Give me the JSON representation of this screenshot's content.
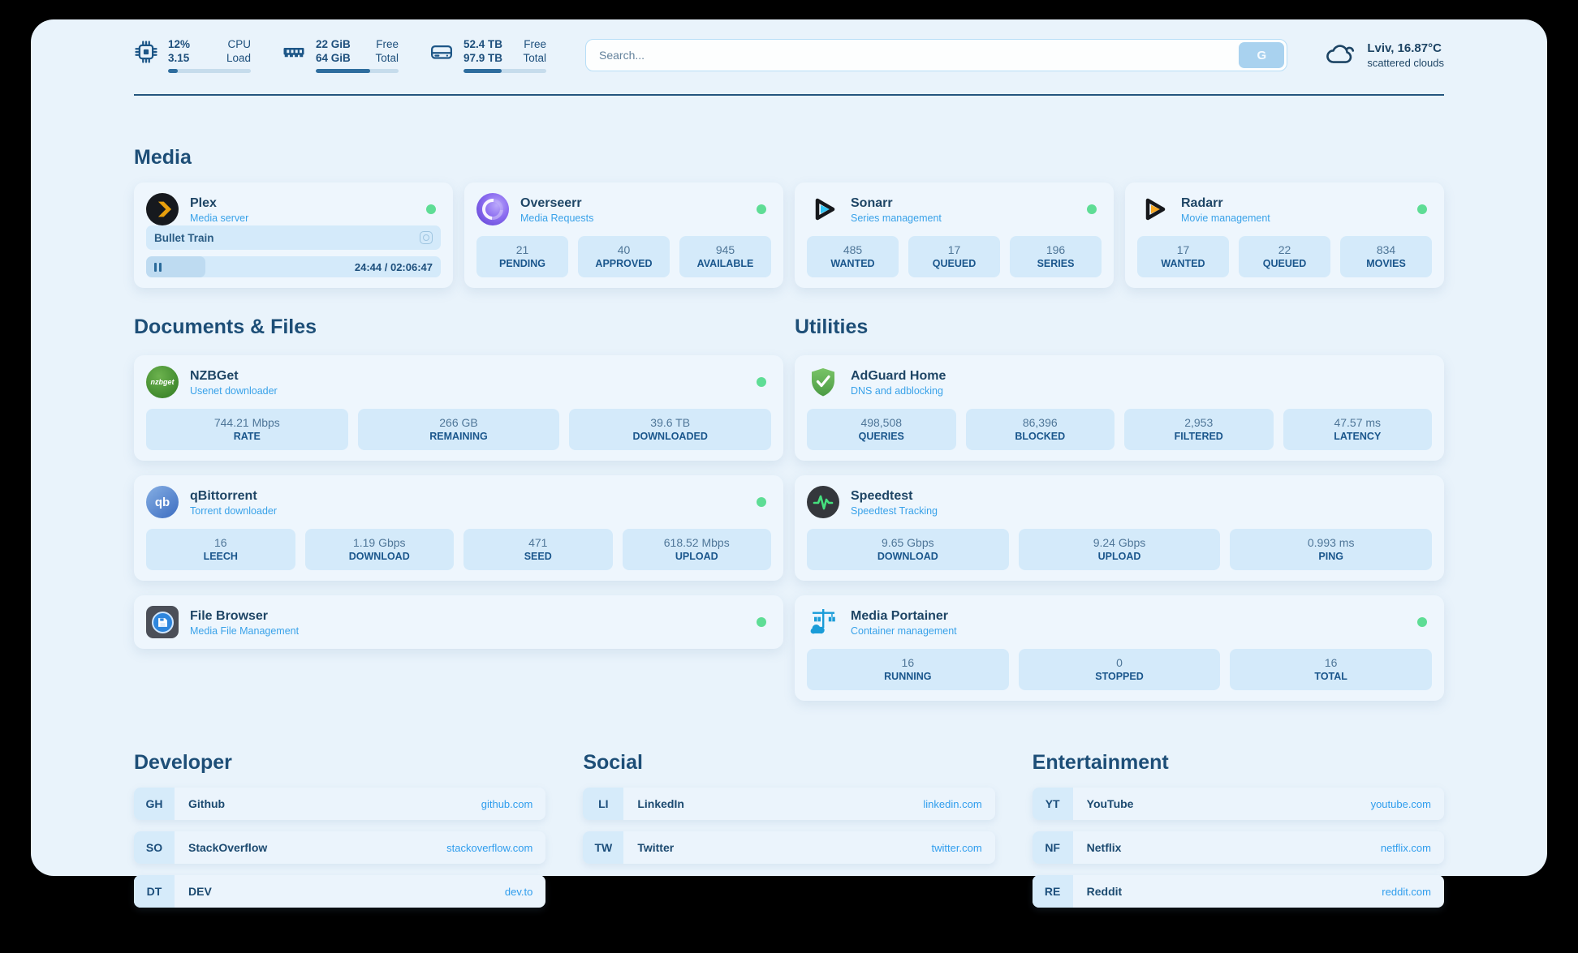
{
  "topbar": {
    "stats": [
      {
        "icon": "cpu-icon",
        "value_top": "12%",
        "value_bottom": "3.15",
        "label_top": "CPU",
        "label_bottom": "Load",
        "progress_pct": 12
      },
      {
        "icon": "ram-icon",
        "value_top": "22 GiB",
        "value_bottom": "64 GiB",
        "label_top": "Free",
        "label_bottom": "Total",
        "progress_pct": 66
      },
      {
        "icon": "disk-icon",
        "value_top": "52.4 TB",
        "value_bottom": "97.9 TB",
        "label_top": "Free",
        "label_bottom": "Total",
        "progress_pct": 46
      }
    ],
    "search": {
      "placeholder": "Search...",
      "button_label": "G"
    },
    "weather": {
      "icon": "cloud-icon",
      "location": "Lviv, 16.87°C",
      "condition": "scattered clouds"
    }
  },
  "sections": {
    "media": {
      "title": "Media",
      "plex": {
        "name": "Plex",
        "desc": "Media server",
        "status": "online",
        "now_playing": "Bullet Train",
        "time_display": "24:44 / 02:06:47",
        "progress_pct": 20
      },
      "overseerr": {
        "name": "Overseerr",
        "desc": "Media Requests",
        "status": "online",
        "stats": [
          {
            "value": "21",
            "label": "PENDING"
          },
          {
            "value": "40",
            "label": "APPROVED"
          },
          {
            "value": "945",
            "label": "AVAILABLE"
          }
        ]
      },
      "sonarr": {
        "name": "Sonarr",
        "desc": "Series management",
        "status": "online",
        "stats": [
          {
            "value": "485",
            "label": "WANTED"
          },
          {
            "value": "17",
            "label": "QUEUED"
          },
          {
            "value": "196",
            "label": "SERIES"
          }
        ]
      },
      "radarr": {
        "name": "Radarr",
        "desc": "Movie management",
        "status": "online",
        "stats": [
          {
            "value": "17",
            "label": "WANTED"
          },
          {
            "value": "22",
            "label": "QUEUED"
          },
          {
            "value": "834",
            "label": "MOVIES"
          }
        ]
      }
    },
    "documents": {
      "title": "Documents & Files",
      "nzbget": {
        "name": "NZBGet",
        "desc": "Usenet downloader",
        "icon_label": "nzbget",
        "status": "online",
        "stats": [
          {
            "value": "744.21 Mbps",
            "label": "RATE"
          },
          {
            "value": "266 GB",
            "label": "REMAINING"
          },
          {
            "value": "39.6 TB",
            "label": "DOWNLOADED"
          }
        ]
      },
      "qbittorrent": {
        "name": "qBittorrent",
        "desc": "Torrent downloader",
        "icon_label": "qb",
        "status": "online",
        "stats": [
          {
            "value": "16",
            "label": "LEECH"
          },
          {
            "value": "1.19 Gbps",
            "label": "DOWNLOAD"
          },
          {
            "value": "471",
            "label": "SEED"
          },
          {
            "value": "618.52 Mbps",
            "label": "UPLOAD"
          }
        ]
      },
      "filebrowser": {
        "name": "File Browser",
        "desc": "Media File Management",
        "status": "online"
      }
    },
    "utilities": {
      "title": "Utilities",
      "adguard": {
        "name": "AdGuard Home",
        "desc": "DNS and adblocking",
        "stats": [
          {
            "value": "498,508",
            "label": "QUERIES"
          },
          {
            "value": "86,396",
            "label": "BLOCKED"
          },
          {
            "value": "2,953",
            "label": "FILTERED"
          },
          {
            "value": "47.57 ms",
            "label": "LATENCY"
          }
        ]
      },
      "speedtest": {
        "name": "Speedtest",
        "desc": "Speedtest Tracking",
        "stats": [
          {
            "value": "9.65 Gbps",
            "label": "DOWNLOAD"
          },
          {
            "value": "9.24 Gbps",
            "label": "UPLOAD"
          },
          {
            "value": "0.993 ms",
            "label": "PING"
          }
        ]
      },
      "portainer": {
        "name": "Media Portainer",
        "desc": "Container management",
        "status": "online",
        "stats": [
          {
            "value": "16",
            "label": "RUNNING"
          },
          {
            "value": "0",
            "label": "STOPPED"
          },
          {
            "value": "16",
            "label": "TOTAL"
          }
        ]
      }
    },
    "links": {
      "developer": {
        "title": "Developer",
        "items": [
          {
            "badge": "GH",
            "name": "Github",
            "url": "github.com"
          },
          {
            "badge": "SO",
            "name": "StackOverflow",
            "url": "stackoverflow.com"
          },
          {
            "badge": "DT",
            "name": "DEV",
            "url": "dev.to"
          }
        ]
      },
      "social": {
        "title": "Social",
        "items": [
          {
            "badge": "LI",
            "name": "LinkedIn",
            "url": "linkedin.com"
          },
          {
            "badge": "TW",
            "name": "Twitter",
            "url": "twitter.com"
          }
        ]
      },
      "entertainment": {
        "title": "Entertainment",
        "items": [
          {
            "badge": "YT",
            "name": "YouTube",
            "url": "youtube.com"
          },
          {
            "badge": "NF",
            "name": "Netflix",
            "url": "netflix.com"
          },
          {
            "badge": "RE",
            "name": "Reddit",
            "url": "reddit.com"
          }
        ]
      }
    }
  },
  "colors": {
    "page_bg": "#e9f3fb",
    "heading_navy": "#1d4e77",
    "link_blue": "#2f9ded",
    "desc_blue": "#39a2e9",
    "status_green": "#5edd95",
    "stat_box_bg": "#d4eafa",
    "progress_fill": "#2e6d9e",
    "plex_yellow": "#e8a00d",
    "overseerr_purple": "#8b6cf0",
    "sonarr_cyan": "#35c5f4",
    "radarr_orange": "#f6a822",
    "nzbget_green": "#2f7a21",
    "qbittorrent_blue": "#3b6cc0",
    "adguard_green": "#76c164",
    "speedtest_pulse": "#45e07e",
    "portainer_blue": "#1a9cd8"
  }
}
